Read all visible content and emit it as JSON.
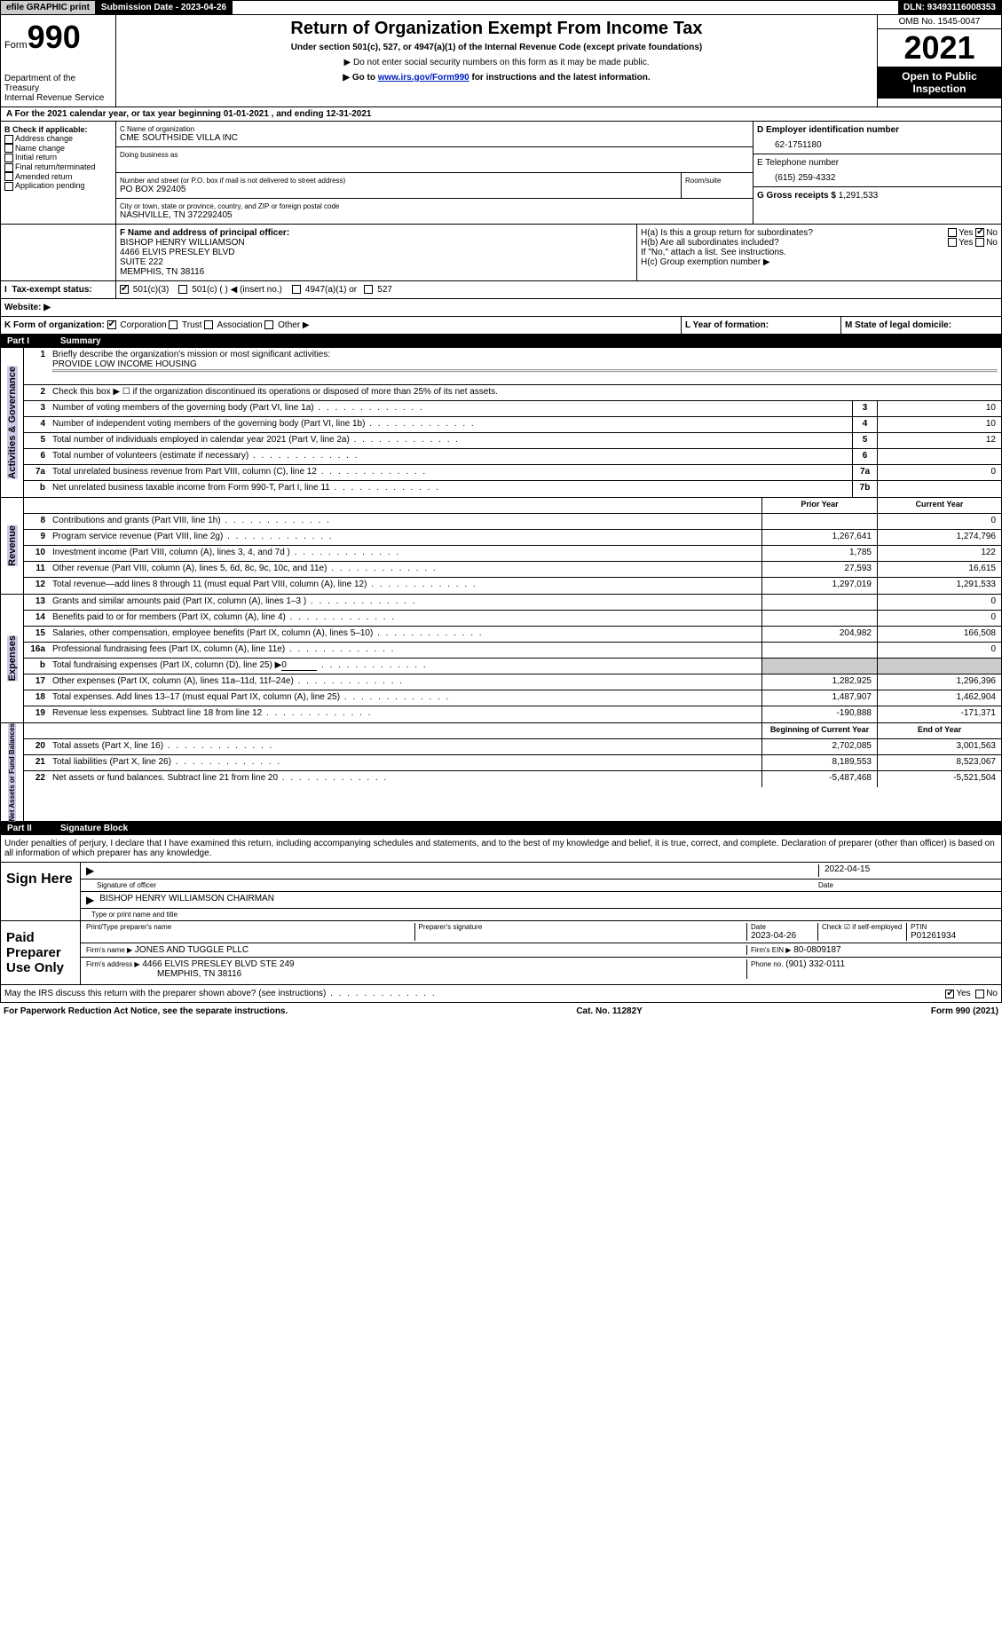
{
  "topbar": {
    "efile": "efile GRAPHIC print",
    "submission_label": "Submission Date - 2023-04-26",
    "dln_label": "DLN: 93493116008353"
  },
  "header": {
    "form_word": "Form",
    "form_num": "990",
    "dept": "Department of the Treasury",
    "irs": "Internal Revenue Service",
    "title": "Return of Organization Exempt From Income Tax",
    "sub1": "Under section 501(c), 527, or 4947(a)(1) of the Internal Revenue Code (except private foundations)",
    "sub2": "▶ Do not enter social security numbers on this form as it may be made public.",
    "sub3_pre": "▶ Go to ",
    "sub3_link": "www.irs.gov/Form990",
    "sub3_post": " for instructions and the latest information.",
    "omb": "OMB No. 1545-0047",
    "year": "2021",
    "open": "Open to Public Inspection"
  },
  "A": "For the 2021 calendar year, or tax year beginning 01-01-2021    , and ending 12-31-2021",
  "B": {
    "label": "B Check if applicable:",
    "items": [
      "Address change",
      "Name change",
      "Initial return",
      "Final return/terminated",
      "Amended return",
      "Application pending"
    ]
  },
  "C": {
    "name_label": "C Name of organization",
    "name": "CME SOUTHSIDE VILLA INC",
    "dba_label": "Doing business as",
    "addr_label": "Number and street (or P.O. box if mail is not delivered to street address)",
    "room_label": "Room/suite",
    "addr": "PO BOX 292405",
    "city_label": "City or town, state or province, country, and ZIP or foreign postal code",
    "city": "NASHVILLE, TN  372292405"
  },
  "D": {
    "label": "D Employer identification number",
    "val": "62-1751180"
  },
  "E": {
    "label": "E Telephone number",
    "val": "(615) 259-4332"
  },
  "G": {
    "label": "G Gross receipts $",
    "val": "1,291,533"
  },
  "F": {
    "label": "F  Name and address of principal officer:",
    "l1": "BISHOP HENRY WILLIAMSON",
    "l2": "4466 ELVIS PRESLEY BLVD",
    "l3": "SUITE 222",
    "l4": "MEMPHIS, TN  38116"
  },
  "H": {
    "a": "H(a)  Is this a group return for subordinates?",
    "b": "H(b)  Are all subordinates included?",
    "note": "If \"No,\" attach a list. See instructions.",
    "c": "H(c)  Group exemption number ▶",
    "yes": "Yes",
    "no": "No"
  },
  "I": {
    "label": "Tax-exempt status:",
    "o1": "501(c)(3)",
    "o2": "501(c) (   ) ◀ (insert no.)",
    "o3": "4947(a)(1) or",
    "o4": "527"
  },
  "J": "Website: ▶",
  "K": {
    "label": "K Form of organization:",
    "corp": "Corporation",
    "trust": "Trust",
    "assoc": "Association",
    "other": "Other ▶"
  },
  "L": "L Year of formation:",
  "M": "M State of legal domicile:",
  "part1": {
    "num": "Part I",
    "title": "Summary"
  },
  "summary": {
    "q1": "Briefly describe the organization's mission or most significant activities:",
    "mission": "PROVIDE LOW INCOME HOUSING",
    "q2": "Check this box ▶ ☐ if the organization discontinued its operations or disposed of more than 25% of its net assets.",
    "rows_gov": [
      {
        "n": "3",
        "t": "Number of voting members of the governing body (Part VI, line 1a)",
        "box": "3",
        "v": "10"
      },
      {
        "n": "4",
        "t": "Number of independent voting members of the governing body (Part VI, line 1b)",
        "box": "4",
        "v": "10"
      },
      {
        "n": "5",
        "t": "Total number of individuals employed in calendar year 2021 (Part V, line 2a)",
        "box": "5",
        "v": "12"
      },
      {
        "n": "6",
        "t": "Total number of volunteers (estimate if necessary)",
        "box": "6",
        "v": ""
      },
      {
        "n": "7a",
        "t": "Total unrelated business revenue from Part VIII, column (C), line 12",
        "box": "7a",
        "v": "0"
      },
      {
        "n": "b",
        "t": "Net unrelated business taxable income from Form 990-T, Part I, line 11",
        "box": "7b",
        "v": ""
      }
    ],
    "col_prior": "Prior Year",
    "col_current": "Current Year",
    "revenue": [
      {
        "n": "8",
        "t": "Contributions and grants (Part VIII, line 1h)",
        "p": "",
        "c": "0"
      },
      {
        "n": "9",
        "t": "Program service revenue (Part VIII, line 2g)",
        "p": "1,267,641",
        "c": "1,274,796"
      },
      {
        "n": "10",
        "t": "Investment income (Part VIII, column (A), lines 3, 4, and 7d )",
        "p": "1,785",
        "c": "122"
      },
      {
        "n": "11",
        "t": "Other revenue (Part VIII, column (A), lines 5, 6d, 8c, 9c, 10c, and 11e)",
        "p": "27,593",
        "c": "16,615"
      },
      {
        "n": "12",
        "t": "Total revenue—add lines 8 through 11 (must equal Part VIII, column (A), line 12)",
        "p": "1,297,019",
        "c": "1,291,533"
      }
    ],
    "expenses": [
      {
        "n": "13",
        "t": "Grants and similar amounts paid (Part IX, column (A), lines 1–3 )",
        "p": "",
        "c": "0"
      },
      {
        "n": "14",
        "t": "Benefits paid to or for members (Part IX, column (A), line 4)",
        "p": "",
        "c": "0"
      },
      {
        "n": "15",
        "t": "Salaries, other compensation, employee benefits (Part IX, column (A), lines 5–10)",
        "p": "204,982",
        "c": "166,508"
      },
      {
        "n": "16a",
        "t": "Professional fundraising fees (Part IX, column (A), line 11e)",
        "p": "",
        "c": "0"
      },
      {
        "n": "b",
        "t": "Total fundraising expenses (Part IX, column (D), line 25) ▶",
        "p": "shade",
        "c": "shade",
        "extra": "0"
      },
      {
        "n": "17",
        "t": "Other expenses (Part IX, column (A), lines 11a–11d, 11f–24e)",
        "p": "1,282,925",
        "c": "1,296,396"
      },
      {
        "n": "18",
        "t": "Total expenses. Add lines 13–17 (must equal Part IX, column (A), line 25)",
        "p": "1,487,907",
        "c": "1,462,904"
      },
      {
        "n": "19",
        "t": "Revenue less expenses. Subtract line 18 from line 12",
        "p": "-190,888",
        "c": "-171,371"
      }
    ],
    "col_begin": "Beginning of Current Year",
    "col_end": "End of Year",
    "net": [
      {
        "n": "20",
        "t": "Total assets (Part X, line 16)",
        "p": "2,702,085",
        "c": "3,001,563"
      },
      {
        "n": "21",
        "t": "Total liabilities (Part X, line 26)",
        "p": "8,189,553",
        "c": "8,523,067"
      },
      {
        "n": "22",
        "t": "Net assets or fund balances. Subtract line 21 from line 20",
        "p": "-5,487,468",
        "c": "-5,521,504"
      }
    ],
    "vlabels": {
      "gov": "Activities & Governance",
      "rev": "Revenue",
      "exp": "Expenses",
      "net": "Net Assets or Fund Balances"
    }
  },
  "part2": {
    "num": "Part II",
    "title": "Signature Block"
  },
  "penalties": "Under penalties of perjury, I declare that I have examined this return, including accompanying schedules and statements, and to the best of my knowledge and belief, it is true, correct, and complete. Declaration of preparer (other than officer) is based on all information of which preparer has any knowledge.",
  "sign": {
    "here": "Sign Here",
    "sig_officer": "Signature of officer",
    "date": "Date",
    "date_val": "2022-04-15",
    "name_val": "BISHOP HENRY WILLIAMSON  CHAIRMAN",
    "name_label": "Type or print name and title"
  },
  "paid": {
    "label": "Paid Preparer Use Only",
    "print_label": "Print/Type preparer's name",
    "sig_label": "Preparer's signature",
    "date_label": "Date",
    "date_val": "2023-04-26",
    "check_label": "Check ☑ if self-employed",
    "ptin_label": "PTIN",
    "ptin": "P01261934",
    "firm_name_label": "Firm's name     ▶",
    "firm_name": "JONES AND TUGGLE PLLC",
    "firm_ein_label": "Firm's EIN ▶",
    "firm_ein": "80-0809187",
    "firm_addr_label": "Firm's address ▶",
    "firm_addr1": "4466 ELVIS PRESLEY BLVD STE 249",
    "firm_addr2": "MEMPHIS, TN  38116",
    "phone_label": "Phone no.",
    "phone": "(901) 332-0111"
  },
  "discuss": "May the IRS discuss this return with the preparer shown above? (see instructions)",
  "footer": {
    "pra": "For Paperwork Reduction Act Notice, see the separate instructions.",
    "cat": "Cat. No. 11282Y",
    "form": "Form 990 (2021)"
  }
}
